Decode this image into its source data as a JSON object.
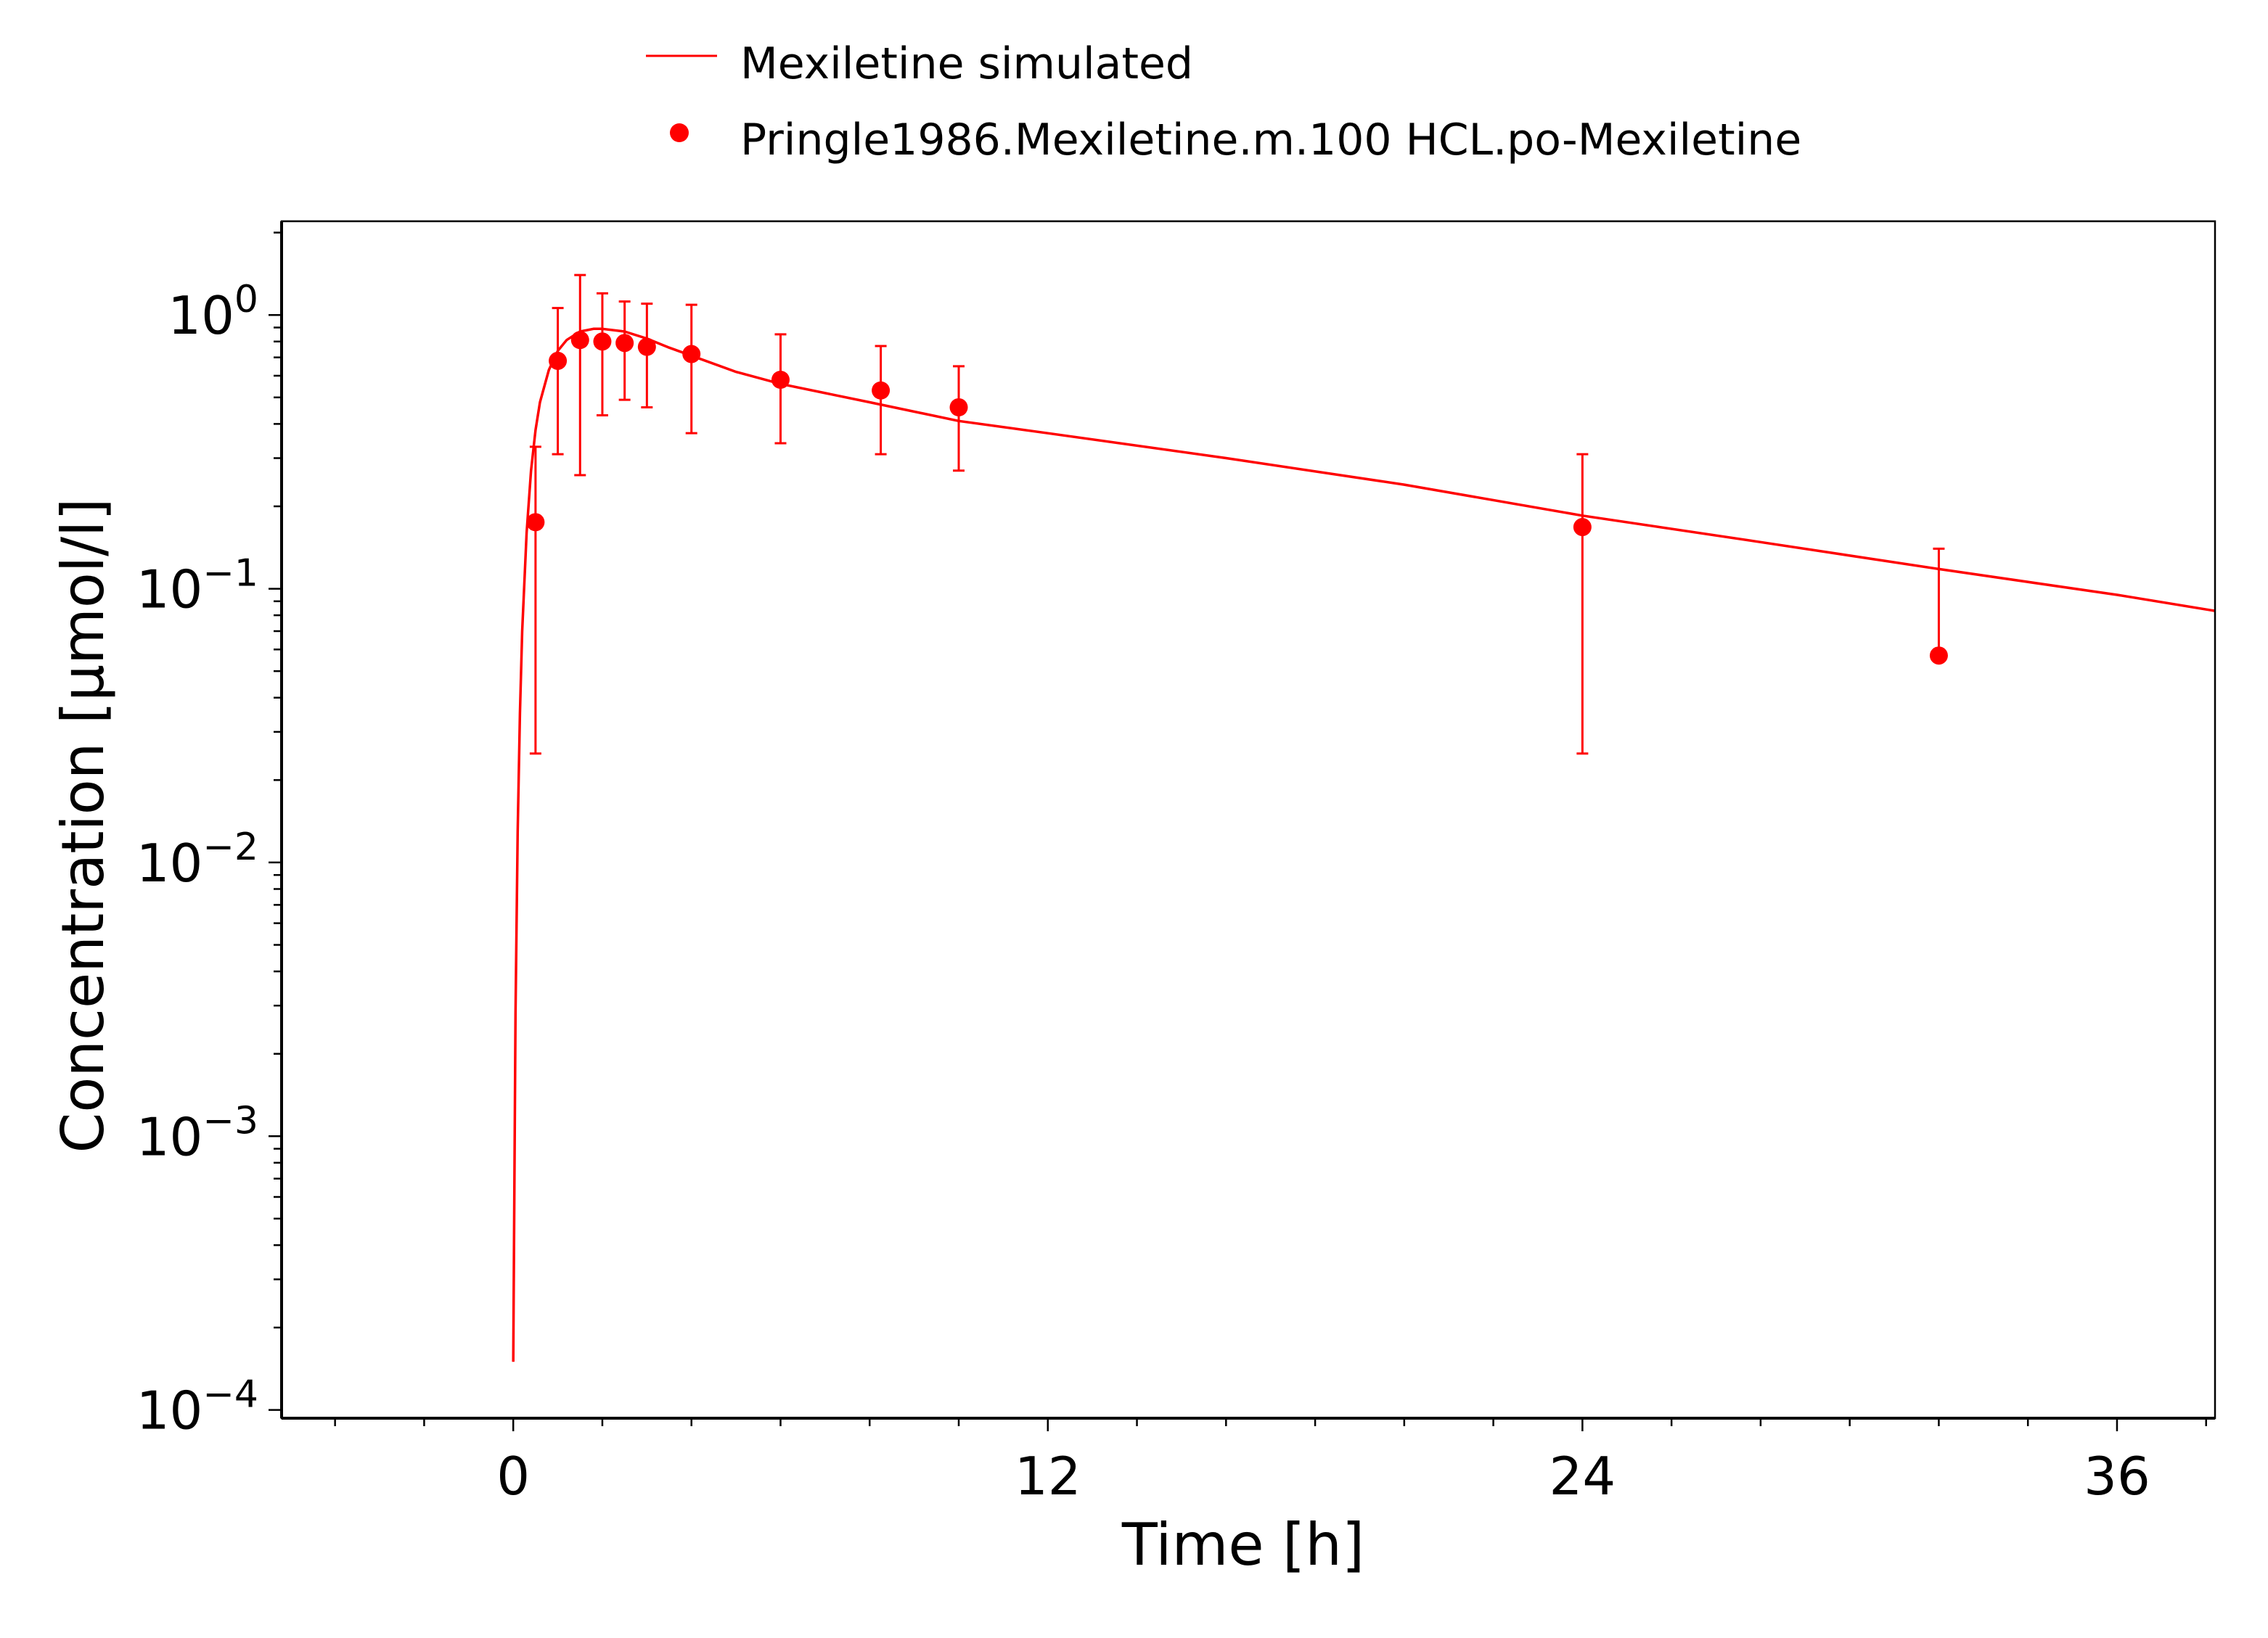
{
  "chart_data": {
    "type": "line",
    "title": "",
    "xlabel": "Time [h]",
    "ylabel": "Concentration [µmol/l]",
    "x_scale": "linear",
    "y_scale": "log",
    "xlim": [
      -5.2,
      38.2
    ],
    "ylim": [
      9.33e-05,
      2.2
    ],
    "x_ticks": [
      {
        "value": 0,
        "label": "0"
      },
      {
        "value": 12,
        "label": "12"
      },
      {
        "value": 24,
        "label": "24"
      },
      {
        "value": 36,
        "label": "36"
      }
    ],
    "y_ticks": [
      {
        "value": 1,
        "base": "10",
        "exp": "0"
      },
      {
        "value": 0.1,
        "base": "10",
        "exp": "−1"
      },
      {
        "value": 0.01,
        "base": "10",
        "exp": "−2"
      },
      {
        "value": 0.001,
        "base": "10",
        "exp": "−3"
      },
      {
        "value": 0.0001,
        "base": "10",
        "exp": "−4"
      }
    ],
    "grid": false,
    "legend_position": "top",
    "legend": [
      {
        "label": "Mexiletine simulated",
        "kind": "line",
        "color": "#ff0000"
      },
      {
        "label": "Pringle1986.Mexiletine.m.100 HCL.po-Mexiletine",
        "kind": "marker",
        "color": "#ff0000"
      }
    ],
    "series": [
      {
        "name": "Mexiletine simulated",
        "kind": "line",
        "color": "#ff0000",
        "x": [
          0.0,
          0.05,
          0.1,
          0.15,
          0.2,
          0.3,
          0.4,
          0.5,
          0.6,
          0.8,
          1.0,
          1.2,
          1.5,
          1.8,
          2.0,
          2.5,
          3.0,
          3.5,
          4.0,
          5.0,
          6.0,
          8.0,
          10.0,
          12.0,
          16.0,
          20.0,
          24.0,
          28.0,
          32.0,
          36.0,
          38.2
        ],
        "y": [
          0.00015,
          0.0028,
          0.013,
          0.035,
          0.07,
          0.16,
          0.27,
          0.38,
          0.48,
          0.63,
          0.74,
          0.81,
          0.87,
          0.89,
          0.89,
          0.87,
          0.82,
          0.76,
          0.71,
          0.62,
          0.56,
          0.48,
          0.41,
          0.37,
          0.3,
          0.24,
          0.185,
          0.148,
          0.118,
          0.095,
          0.083
        ]
      },
      {
        "name": "Pringle1986.Mexiletine.m.100 HCL.po-Mexiletine",
        "kind": "scatter",
        "color": "#ff0000",
        "x": [
          0.5,
          1.0,
          1.5,
          2.0,
          2.5,
          3.0,
          4.0,
          6.0,
          8.25,
          10.0,
          24.0,
          32.0
        ],
        "y": [
          0.175,
          0.68,
          0.81,
          0.8,
          0.79,
          0.765,
          0.72,
          0.58,
          0.53,
          0.46,
          0.168,
          0.057
        ],
        "yerr_low": [
          0.025,
          0.31,
          0.26,
          0.43,
          0.49,
          0.46,
          0.37,
          0.34,
          0.31,
          0.27,
          0.025,
          0.057
        ],
        "yerr_high": [
          0.33,
          1.06,
          1.4,
          1.2,
          1.12,
          1.1,
          1.09,
          0.85,
          0.77,
          0.65,
          0.31,
          0.14
        ]
      }
    ]
  }
}
